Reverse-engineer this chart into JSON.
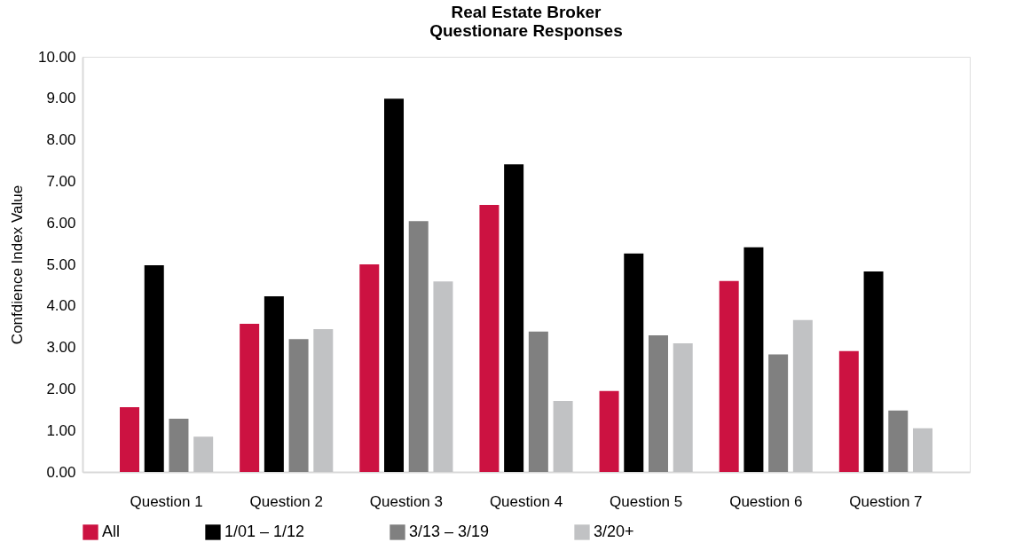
{
  "chart_data": {
    "type": "bar",
    "title": [
      "Real Estate Broker",
      "Questionare Responses"
    ],
    "ylabel": "Confdience Index Value",
    "categories": [
      "Question 1",
      "Question 2",
      "Question 3",
      "Question 4",
      "Question 5",
      "Question 6",
      "Question 7"
    ],
    "series": [
      {
        "name": "All",
        "color": "#cc1241",
        "values": [
          1.56,
          3.57,
          5.0,
          6.43,
          1.95,
          4.6,
          2.91
        ]
      },
      {
        "name": "1/01 – 1/12",
        "color": "#000000",
        "values": [
          4.98,
          4.23,
          8.99,
          7.41,
          5.26,
          5.41,
          4.83
        ]
      },
      {
        "name": "3/13 – 3/19",
        "color": "#808080",
        "values": [
          1.28,
          3.2,
          6.04,
          3.38,
          3.29,
          2.83,
          1.48
        ]
      },
      {
        "name": "3/20+",
        "color": "#c1c2c4",
        "values": [
          0.85,
          3.44,
          4.59,
          1.71,
          3.1,
          3.66,
          1.05
        ]
      }
    ],
    "ylim": [
      0,
      10
    ],
    "yticks": [
      {
        "value": 0,
        "label": "0.00"
      },
      {
        "value": 1,
        "label": "1.00"
      },
      {
        "value": 2,
        "label": "2.00"
      },
      {
        "value": 3,
        "label": "3.00"
      },
      {
        "value": 4,
        "label": "4.00"
      },
      {
        "value": 5,
        "label": "5.00"
      },
      {
        "value": 6,
        "label": "6.00"
      },
      {
        "value": 7,
        "label": "7.00"
      },
      {
        "value": 8,
        "label": "8.00"
      },
      {
        "value": 9,
        "label": "9.00"
      },
      {
        "value": 10,
        "label": "10.00"
      }
    ],
    "grid": false,
    "legend": "bottom"
  }
}
